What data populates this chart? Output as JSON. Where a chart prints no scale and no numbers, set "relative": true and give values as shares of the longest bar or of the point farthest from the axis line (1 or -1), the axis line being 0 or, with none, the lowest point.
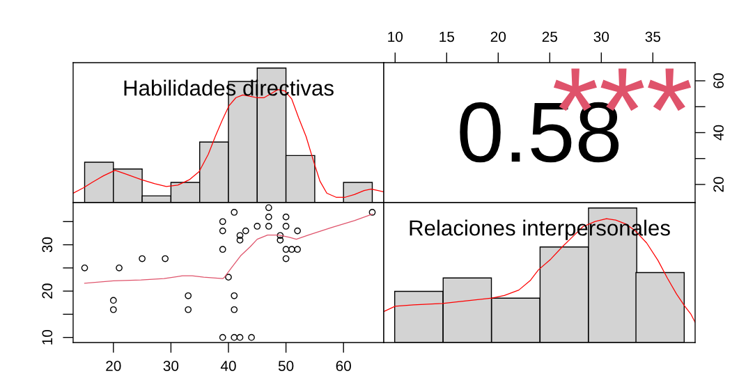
{
  "chart_data": [
    {
      "type": "bar",
      "title": "Habilidades directivas",
      "relative": true,
      "x": [
        17.5,
        22.5,
        27.5,
        32.5,
        37.5,
        42.5,
        47.5,
        52.5,
        57.5,
        62.5
      ],
      "values": [
        0.3,
        0.25,
        0.05,
        0.15,
        0.45,
        0.9,
        1,
        0.35,
        0,
        0.15
      ],
      "color": "#d3d3d3",
      "xlim": [
        13,
        67
      ],
      "tick_labels": false,
      "series": [
        {
          "type": "line",
          "color": "#ff0000",
          "x": [
            13,
            14.8,
            16.3,
            18.3,
            20.3,
            22.3,
            24.9,
            27.2,
            29.2,
            31.2,
            33.2,
            34.9,
            36.5,
            37.7,
            38.9,
            40.1,
            41.3,
            42.5,
            43.8,
            44.9,
            46.2,
            47.4,
            48.6,
            49.8,
            51,
            52.2,
            53.5,
            54.7,
            55.9,
            57.1,
            58.7,
            60.3,
            61.9,
            63.6,
            64.8,
            66,
            67
          ],
          "values": [
            0.07,
            0.11,
            0.15,
            0.2,
            0.24,
            0.21,
            0.17,
            0.14,
            0.12,
            0.13,
            0.17,
            0.23,
            0.36,
            0.49,
            0.61,
            0.72,
            0.78,
            0.8,
            0.79,
            0.78,
            0.78,
            0.81,
            0.84,
            0.83,
            0.77,
            0.63,
            0.49,
            0.32,
            0.16,
            0.07,
            0.04,
            0.04,
            0.06,
            0.09,
            0.1,
            0.09,
            0.08
          ]
        }
      ]
    },
    {
      "type": "scatter",
      "annotations": [
        "0.58",
        "***"
      ],
      "colors": [
        "#000000",
        "#df536b"
      ],
      "xlim": [
        8.9,
        39.1
      ],
      "xticks": [
        10,
        15,
        20,
        25,
        30,
        35
      ],
      "ylim": [
        13,
        67
      ],
      "yticks": [
        20,
        {
          "value": 30,
          "label": null
        },
        40,
        {
          "value": 50,
          "label": null
        },
        60
      ]
    },
    {
      "type": "scatter",
      "xlim": [
        13,
        67
      ],
      "xticks": [
        20,
        30,
        40,
        50,
        60
      ],
      "ylim": [
        8.9,
        39.1
      ],
      "yticks": [
        10,
        {
          "value": 15,
          "label": null
        },
        20,
        {
          "value": 25,
          "label": null
        },
        30,
        {
          "value": 35,
          "label": null
        }
      ],
      "series": [
        {
          "type": "scatter",
          "marker": "circle",
          "color": "#000000",
          "x": [
            15,
            20,
            20,
            21,
            25,
            29,
            33,
            33,
            39,
            39,
            39,
            39,
            40,
            41,
            41,
            41,
            41,
            42,
            42,
            42,
            43,
            44,
            45,
            47,
            47,
            47,
            49,
            49,
            50,
            50,
            50,
            50,
            51,
            52,
            52,
            65
          ],
          "values": [
            25,
            18,
            16,
            25,
            27,
            27,
            19,
            16,
            35,
            33,
            29,
            10,
            23,
            37,
            19,
            16,
            10,
            10,
            32,
            31,
            33,
            10,
            34,
            38,
            36,
            34,
            32,
            31,
            36,
            34,
            29,
            27,
            29,
            33,
            29,
            37
          ]
        },
        {
          "type": "line",
          "color": "#df536b",
          "x": [
            15,
            20,
            24.8,
            28.8,
            32,
            33.7,
            35.7,
            39,
            39.3,
            40.5,
            42.1,
            43.8,
            45,
            46.8,
            48.8,
            50.6,
            51.8,
            53.9,
            57.9,
            61.9,
            65
          ],
          "values": [
            21.7,
            22.2,
            22.4,
            22.7,
            23.3,
            23.3,
            23,
            22.7,
            23,
            25,
            27.6,
            29.6,
            31.2,
            32.1,
            32.1,
            31.6,
            31.2,
            32.1,
            33.7,
            35.2,
            36.6
          ]
        }
      ]
    },
    {
      "type": "bar",
      "title": "Relaciones interpersonales",
      "relative": true,
      "x": [
        12.3,
        17,
        21.7,
        26.4,
        31.1,
        35.7
      ],
      "values": [
        0.38,
        0.48,
        0.33,
        0.71,
        1,
        0.52
      ],
      "color": "#d3d3d3",
      "xlim": [
        8.9,
        39.1
      ],
      "tick_labels": false,
      "series": [
        {
          "type": "line",
          "color": "#ff0000",
          "x": [
            8.9,
            10,
            11.8,
            14.6,
            16.9,
            19.4,
            20.6,
            22,
            23.1,
            23.9,
            25.1,
            26.2,
            27.4,
            28.2,
            29.4,
            30.5,
            31.4,
            32.4,
            33.3,
            34.4,
            35.5,
            36.4,
            37.3,
            38.1,
            38.7,
            39.1
          ],
          "values": [
            0.23,
            0.27,
            0.28,
            0.29,
            0.31,
            0.33,
            0.35,
            0.39,
            0.46,
            0.54,
            0.62,
            0.71,
            0.8,
            0.86,
            0.9,
            0.92,
            0.91,
            0.88,
            0.83,
            0.74,
            0.61,
            0.48,
            0.36,
            0.27,
            0.21,
            0.15
          ]
        }
      ]
    }
  ]
}
